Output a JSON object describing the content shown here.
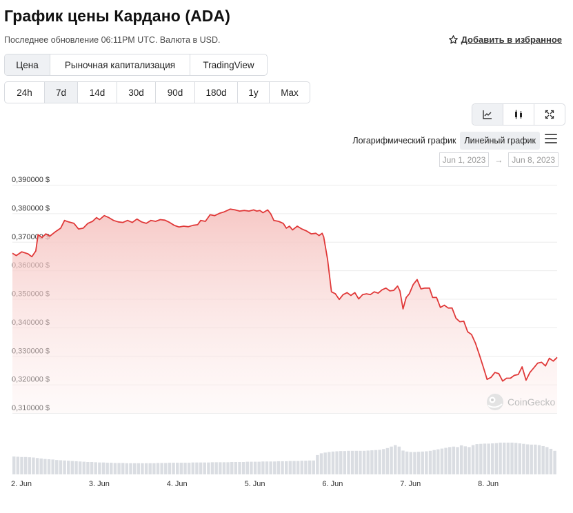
{
  "header": {
    "title": "График цены Кардано (ADA)",
    "updated": "Последнее обновление 06:11PM UTC. Валюта в USD.",
    "favorite": "Добавить в избранное"
  },
  "tabs": [
    {
      "label": "Цена",
      "active": true
    },
    {
      "label": "Рыночная капитализация",
      "active": false
    },
    {
      "label": "TradingView",
      "active": false
    }
  ],
  "ranges": [
    {
      "label": "24h",
      "active": false
    },
    {
      "label": "7d",
      "active": true
    },
    {
      "label": "14d",
      "active": false
    },
    {
      "label": "30d",
      "active": false
    },
    {
      "label": "90d",
      "active": false
    },
    {
      "label": "180d",
      "active": false
    },
    {
      "label": "1y",
      "active": false
    },
    {
      "label": "Max",
      "active": false
    }
  ],
  "chart_types": [
    {
      "icon": "line-chart-icon",
      "active": true
    },
    {
      "icon": "candlestick-icon",
      "active": false
    },
    {
      "icon": "fullscreen-icon",
      "active": false
    }
  ],
  "scale": {
    "log": "Логарифмический график",
    "linear": "Линейный график",
    "active": "linear"
  },
  "date_range": {
    "from": "Jun 1, 2023",
    "to": "Jun 8, 2023",
    "arrow": "→"
  },
  "watermark": "CoinGecko",
  "colors": {
    "line": "#e03838",
    "area_top": "#f6c6c4",
    "volume": "#dadde2",
    "grid": "#ececec"
  },
  "chart_data": {
    "type": "area",
    "ylim": [
      0.31,
      0.39
    ],
    "yticks": [
      0.39,
      0.38,
      0.37,
      0.36,
      0.35,
      0.34,
      0.33,
      0.32,
      0.31
    ],
    "ytick_labels": [
      "0,390000 $",
      "0,380000 $",
      "0,370000 $",
      "0,360000 $",
      "0,350000 $",
      "0,340000 $",
      "0,330000 $",
      "0,320000 $",
      "0,310000 $"
    ],
    "xlim": [
      0.0,
      7.0
    ],
    "xticks": [
      0,
      1,
      2,
      3,
      4,
      5,
      6
    ],
    "xtick_labels": [
      "2. Jun",
      "3. Jun",
      "4. Jun",
      "5. Jun",
      "6. Jun",
      "7. Jun",
      "8. Jun"
    ],
    "series": [
      {
        "values": [
          [
            0.0,
            0.366
          ],
          [
            0.05,
            0.3652
          ],
          [
            0.12,
            0.3665
          ],
          [
            0.2,
            0.3658
          ],
          [
            0.25,
            0.3648
          ],
          [
            0.3,
            0.3668
          ],
          [
            0.33,
            0.3725
          ],
          [
            0.38,
            0.3715
          ],
          [
            0.43,
            0.3728
          ],
          [
            0.48,
            0.372
          ],
          [
            0.55,
            0.3735
          ],
          [
            0.62,
            0.3748
          ],
          [
            0.67,
            0.3775
          ],
          [
            0.72,
            0.377
          ],
          [
            0.79,
            0.3765
          ],
          [
            0.85,
            0.3745
          ],
          [
            0.91,
            0.3748
          ],
          [
            0.97,
            0.3765
          ],
          [
            1.03,
            0.3772
          ],
          [
            1.08,
            0.3785
          ],
          [
            1.12,
            0.3778
          ],
          [
            1.18,
            0.3792
          ],
          [
            1.24,
            0.3785
          ],
          [
            1.3,
            0.3775
          ],
          [
            1.36,
            0.377
          ],
          [
            1.42,
            0.3768
          ],
          [
            1.48,
            0.3775
          ],
          [
            1.54,
            0.3768
          ],
          [
            1.6,
            0.378
          ],
          [
            1.66,
            0.377
          ],
          [
            1.72,
            0.3765
          ],
          [
            1.78,
            0.3775
          ],
          [
            1.84,
            0.3772
          ],
          [
            1.9,
            0.3778
          ],
          [
            1.96,
            0.3776
          ],
          [
            2.02,
            0.3768
          ],
          [
            2.08,
            0.3758
          ],
          [
            2.14,
            0.3752
          ],
          [
            2.2,
            0.3755
          ],
          [
            2.26,
            0.3753
          ],
          [
            2.32,
            0.3758
          ],
          [
            2.38,
            0.376
          ],
          [
            2.42,
            0.3775
          ],
          [
            2.48,
            0.3772
          ],
          [
            2.54,
            0.3795
          ],
          [
            2.6,
            0.3792
          ],
          [
            2.66,
            0.38
          ],
          [
            2.72,
            0.3805
          ],
          [
            2.8,
            0.3815
          ],
          [
            2.86,
            0.3812
          ],
          [
            2.92,
            0.3808
          ],
          [
            2.98,
            0.381
          ],
          [
            3.04,
            0.3808
          ],
          [
            3.1,
            0.3812
          ],
          [
            3.14,
            0.3808
          ],
          [
            3.18,
            0.381
          ],
          [
            3.22,
            0.3802
          ],
          [
            3.28,
            0.3812
          ],
          [
            3.32,
            0.3798
          ],
          [
            3.36,
            0.3775
          ],
          [
            3.42,
            0.3772
          ],
          [
            3.48,
            0.3765
          ],
          [
            3.52,
            0.3748
          ],
          [
            3.56,
            0.3755
          ],
          [
            3.6,
            0.3742
          ],
          [
            3.66,
            0.3755
          ],
          [
            3.72,
            0.3745
          ],
          [
            3.78,
            0.3738
          ],
          [
            3.84,
            0.3728
          ],
          [
            3.9,
            0.373
          ],
          [
            3.94,
            0.3722
          ],
          [
            3.98,
            0.373
          ],
          [
            4.0,
            0.3718
          ],
          [
            4.05,
            0.3638
          ],
          [
            4.1,
            0.3525
          ],
          [
            4.15,
            0.3518
          ],
          [
            4.2,
            0.3498
          ],
          [
            4.25,
            0.3515
          ],
          [
            4.3,
            0.3522
          ],
          [
            4.35,
            0.3512
          ],
          [
            4.4,
            0.3522
          ],
          [
            4.45,
            0.35
          ],
          [
            4.5,
            0.3515
          ],
          [
            4.55,
            0.3518
          ],
          [
            4.6,
            0.3515
          ],
          [
            4.65,
            0.3525
          ],
          [
            4.7,
            0.352
          ],
          [
            4.75,
            0.3532
          ],
          [
            4.8,
            0.3538
          ],
          [
            4.85,
            0.3528
          ],
          [
            4.9,
            0.353
          ],
          [
            4.95,
            0.3545
          ],
          [
            4.98,
            0.3528
          ],
          [
            5.02,
            0.3465
          ],
          [
            5.06,
            0.3505
          ],
          [
            5.1,
            0.3518
          ],
          [
            5.15,
            0.355
          ],
          [
            5.2,
            0.3568
          ],
          [
            5.25,
            0.3535
          ],
          [
            5.3,
            0.3538
          ],
          [
            5.36,
            0.3538
          ],
          [
            5.4,
            0.3505
          ],
          [
            5.45,
            0.3505
          ],
          [
            5.5,
            0.347
          ],
          [
            5.55,
            0.3478
          ],
          [
            5.6,
            0.3468
          ],
          [
            5.65,
            0.3468
          ],
          [
            5.7,
            0.3432
          ],
          [
            5.75,
            0.342
          ],
          [
            5.8,
            0.3422
          ],
          [
            5.85,
            0.3385
          ],
          [
            5.9,
            0.3375
          ],
          [
            5.95,
            0.3345
          ],
          [
            6.0,
            0.3305
          ],
          [
            6.05,
            0.3262
          ],
          [
            6.1,
            0.3218
          ],
          [
            6.15,
            0.3225
          ],
          [
            6.2,
            0.3242
          ],
          [
            6.25,
            0.3238
          ],
          [
            6.3,
            0.3212
          ],
          [
            6.35,
            0.3222
          ],
          [
            6.4,
            0.3222
          ],
          [
            6.45,
            0.3232
          ],
          [
            6.5,
            0.3235
          ],
          [
            6.55,
            0.3262
          ],
          [
            6.6,
            0.3215
          ],
          [
            6.65,
            0.3242
          ],
          [
            6.7,
            0.3258
          ],
          [
            6.75,
            0.3275
          ],
          [
            6.8,
            0.3278
          ],
          [
            6.85,
            0.3265
          ],
          [
            6.9,
            0.3292
          ],
          [
            6.95,
            0.3282
          ],
          [
            7.0,
            0.3295
          ]
        ]
      }
    ],
    "volume": [
      0.72,
      0.71,
      0.7,
      0.7,
      0.69,
      0.68,
      0.66,
      0.64,
      0.62,
      0.61,
      0.6,
      0.58,
      0.57,
      0.56,
      0.55,
      0.54,
      0.53,
      0.52,
      0.51,
      0.5,
      0.5,
      0.49,
      0.48,
      0.48,
      0.47,
      0.47,
      0.46,
      0.46,
      0.46,
      0.45,
      0.45,
      0.45,
      0.45,
      0.45,
      0.45,
      0.45,
      0.45,
      0.46,
      0.46,
      0.46,
      0.47,
      0.47,
      0.47,
      0.47,
      0.47,
      0.47,
      0.48,
      0.48,
      0.48,
      0.48,
      0.48,
      0.49,
      0.49,
      0.49,
      0.49,
      0.49,
      0.5,
      0.5,
      0.5,
      0.5,
      0.51,
      0.51,
      0.51,
      0.51,
      0.52,
      0.52,
      0.52,
      0.52,
      0.53,
      0.53,
      0.53,
      0.54,
      0.54,
      0.54,
      0.55,
      0.55,
      0.56,
      0.56,
      0.78,
      0.85,
      0.88,
      0.9,
      0.92,
      0.93,
      0.94,
      0.94,
      0.95,
      0.95,
      0.95,
      0.95,
      0.95,
      0.96,
      0.97,
      0.98,
      0.99,
      1.02,
      1.06,
      1.12,
      1.18,
      1.12,
      0.96,
      0.92,
      0.9,
      0.9,
      0.91,
      0.92,
      0.93,
      0.95,
      0.98,
      1.01,
      1.04,
      1.07,
      1.1,
      1.12,
      1.1,
      1.17,
      1.13,
      1.1,
      1.18,
      1.22,
      1.23,
      1.24,
      1.24,
      1.25,
      1.26,
      1.28,
      1.28,
      1.28,
      1.28,
      1.27,
      1.25,
      1.23,
      1.21,
      1.2,
      1.2,
      1.18,
      1.14,
      1.1,
      1.03,
      0.95
    ]
  }
}
